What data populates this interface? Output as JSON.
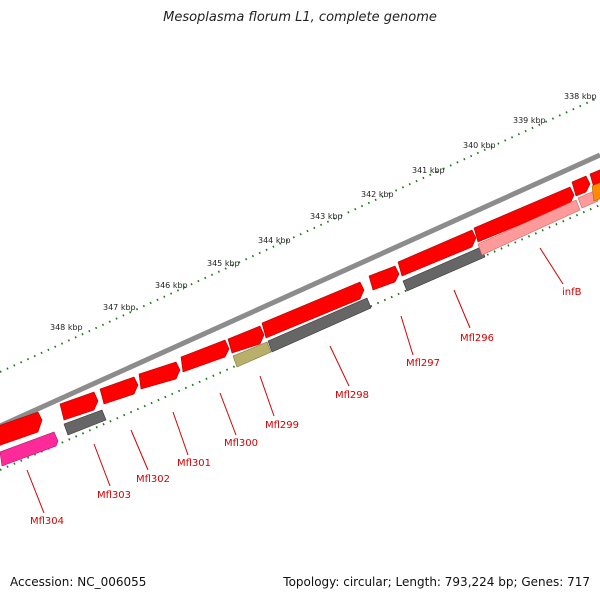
{
  "title": "Mesoplasma florum L1, complete genome",
  "footer": {
    "accession": "Accession: NC_006055",
    "summary": "Topology: circular; Length: 793,224 bp; Genes: 717"
  },
  "colors": {
    "backbone": "#8c8c8c",
    "forward_gene": "#ff0000",
    "reverse_gene": "#666666",
    "trna_gene": "#b8b06a",
    "pink_gene": "#ff2a9a",
    "light_red_gene": "#ff9a9a",
    "orange_gene": "#ff8c00",
    "tick": "#1a7a1a",
    "label": "#d40000"
  },
  "scale": {
    "labels": [
      "338 kbp",
      "339 kbp",
      "340 kbp",
      "341 kbp",
      "342 kbp",
      "343 kbp",
      "344 kbp",
      "345 kbp",
      "346 kbp",
      "347 kbp",
      "348 kbp"
    ]
  },
  "genes": [
    {
      "label": "infB",
      "strand": "reverse",
      "color": "light_red"
    },
    {
      "label": "Mfl296",
      "strand": "reverse",
      "color": "grey"
    },
    {
      "label": "Mfl297",
      "strand": "forward",
      "color": "red"
    },
    {
      "label": "Mfl298",
      "strand": "reverse",
      "color": "grey"
    },
    {
      "label": "Mfl299",
      "strand": "reverse",
      "color": "olive"
    },
    {
      "label": "Mfl300",
      "strand": "forward",
      "color": "red"
    },
    {
      "label": "Mfl301",
      "strand": "forward",
      "color": "red"
    },
    {
      "label": "Mfl302",
      "strand": "forward",
      "color": "red"
    },
    {
      "label": "Mfl303",
      "strand": "reverse",
      "color": "grey"
    },
    {
      "label": "Mfl304",
      "strand": "reverse",
      "color": "pink"
    }
  ]
}
